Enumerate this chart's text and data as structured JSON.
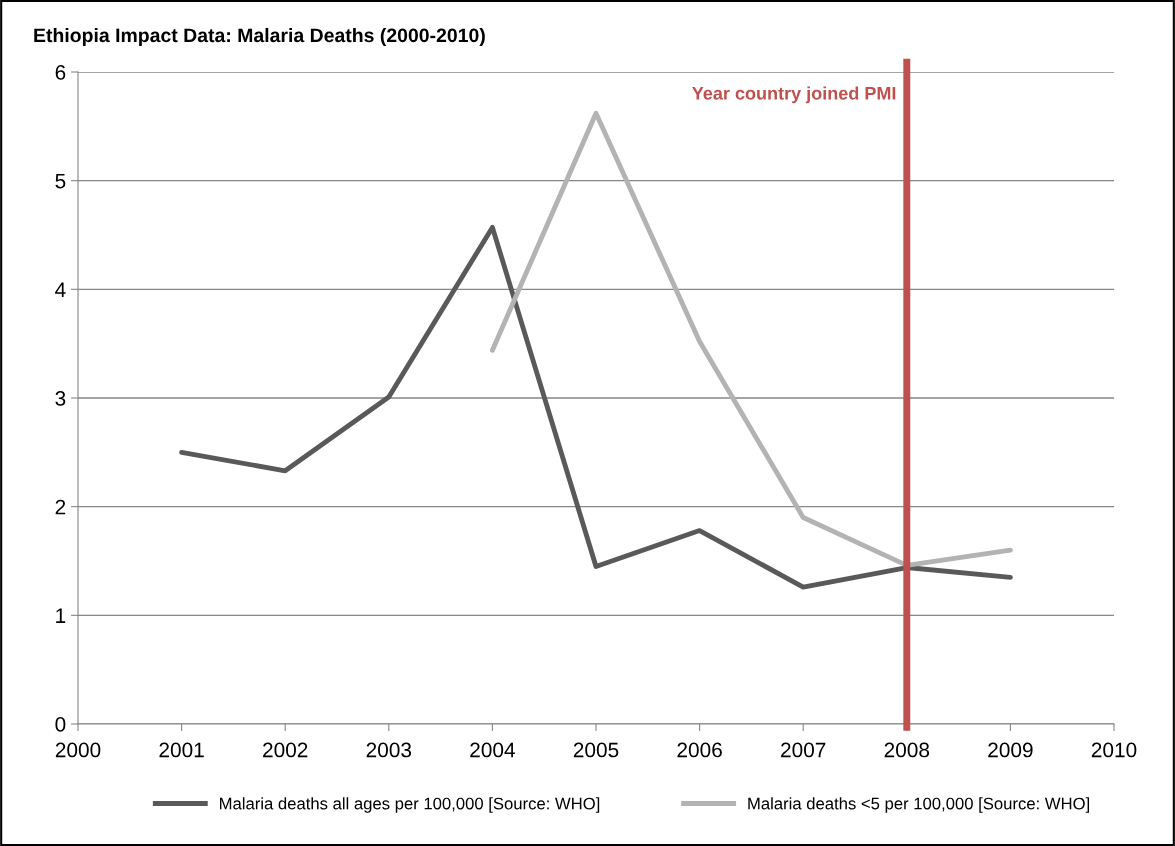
{
  "chart_data": {
    "type": "line",
    "title": "Ethiopia Impact Data: Malaria Deaths (2000-2010)",
    "x": [
      2001,
      2002,
      2003,
      2004,
      2005,
      2006,
      2007,
      2008,
      2009
    ],
    "series": [
      {
        "name": "Malaria deaths all ages per 100,000 [Source: WHO]",
        "color": "#595959",
        "values": [
          2.5,
          2.33,
          3.01,
          4.57,
          1.45,
          1.78,
          1.26,
          1.44,
          1.35
        ]
      },
      {
        "name": "Malaria deaths <5 per 100,000 [Source: WHO]",
        "color": "#b3b3b3",
        "values": [
          null,
          null,
          null,
          3.44,
          5.62,
          3.52,
          1.9,
          1.46,
          1.6
        ]
      }
    ],
    "xlim": [
      2000,
      2010
    ],
    "xticks": [
      2000,
      2001,
      2002,
      2003,
      2004,
      2005,
      2006,
      2007,
      2008,
      2009,
      2010
    ],
    "ylim": [
      0,
      6
    ],
    "yticks": [
      0,
      1,
      2,
      3,
      4,
      5,
      6
    ],
    "ref_lines": [
      {
        "axis": "x",
        "value": 2008,
        "label": "Year country joined PMI",
        "color": "#c0504d"
      }
    ],
    "grid": "y",
    "legend": "bottom",
    "marker": "none",
    "line_style": "solid"
  }
}
